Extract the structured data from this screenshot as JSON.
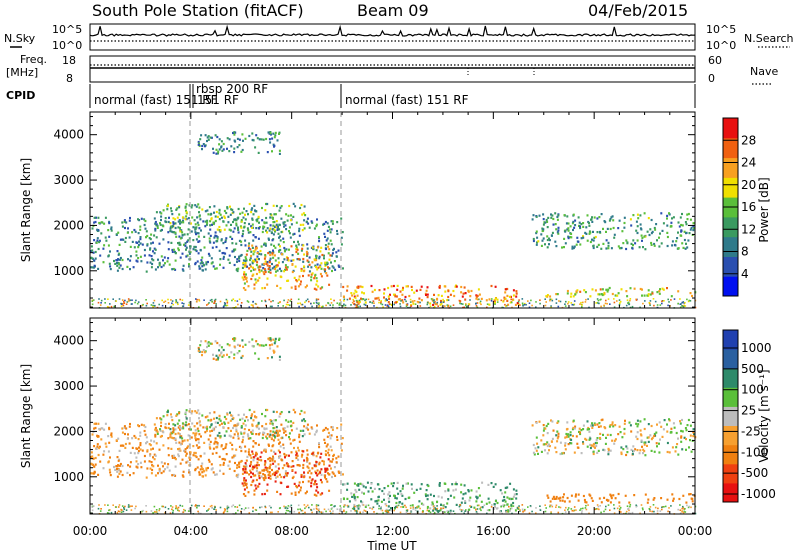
{
  "header": {
    "station": "South Pole Station (fitACF)",
    "beam": "Beam 09",
    "date": "04/Feb/2015"
  },
  "top_panels": {
    "nsky": {
      "label": "N.Sky",
      "ticks": [
        "10^5",
        "10^0"
      ]
    },
    "nsearch": {
      "label": "N.Search",
      "ticks": [
        "10^5",
        "10^0"
      ]
    },
    "freq": {
      "label_line1": "Freq.",
      "label_line2": "[MHz]",
      "ticks": [
        "18",
        "8"
      ]
    },
    "nave": {
      "label": "Nave",
      "ticks": [
        "60",
        "0"
      ]
    },
    "cpid": {
      "label": "CPID",
      "segments": [
        {
          "label": "normal (fast) 151 RF",
          "start_hour": 0,
          "end_hour": 4.0
        },
        {
          "label": "rbsp 200 RF",
          "start_hour": 4.0,
          "end_hour": 4.15
        },
        {
          "label": "151 RF",
          "start_hour": 4.15,
          "end_hour": 10.0
        },
        {
          "label": "normal (fast) 151 RF",
          "start_hour": 10.0,
          "end_hour": 24.0
        }
      ]
    }
  },
  "chart_data": [
    {
      "type": "heatmap",
      "name": "power",
      "ylabel": "Slant Range [km]",
      "xlabel": "",
      "xlim": [
        0,
        24
      ],
      "ylim": [
        180,
        4500
      ],
      "yticks": [
        1000,
        2000,
        3000,
        4000
      ],
      "colorbar": {
        "label": "Power [dB]",
        "ticks": [
          4,
          8,
          12,
          16,
          20,
          24,
          28
        ]
      },
      "echo_regions": [
        {
          "t0": 0.0,
          "t1": 10.0,
          "r0": 1000,
          "r1": 2200,
          "value": 10
        },
        {
          "t0": 2.5,
          "t1": 8.5,
          "r0": 1850,
          "r1": 2500,
          "value": 14
        },
        {
          "t0": 4.2,
          "t1": 7.5,
          "r0": 3600,
          "r1": 4100,
          "value": 10
        },
        {
          "t0": 6.0,
          "t1": 9.5,
          "r0": 600,
          "r1": 1600,
          "value": 22
        },
        {
          "t0": 10.0,
          "t1": 17.0,
          "r0": 250,
          "r1": 700,
          "value": 24
        },
        {
          "t0": 17.5,
          "t1": 24.0,
          "r0": 1500,
          "r1": 2300,
          "value": 12
        },
        {
          "t0": 18.0,
          "t1": 24.0,
          "r0": 450,
          "r1": 650,
          "value": 20
        }
      ]
    },
    {
      "type": "heatmap",
      "name": "velocity",
      "ylabel": "Slant Range [km]",
      "xlabel": "Time UT",
      "xlim": [
        0,
        24
      ],
      "ylim": [
        180,
        4500
      ],
      "yticks": [
        1000,
        2000,
        3000,
        4000
      ],
      "xticks": [
        "00:00",
        "04:00",
        "08:00",
        "12:00",
        "16:00",
        "20:00",
        "00:00"
      ],
      "colorbar": {
        "label": "Velocity [m s⁻¹]",
        "ticks": [
          1000,
          500,
          100,
          25,
          -25,
          -100,
          -500,
          -1000
        ]
      },
      "echo_regions": [
        {
          "t0": 0.0,
          "t1": 10.0,
          "r0": 1000,
          "r1": 2200,
          "value": -100
        },
        {
          "t0": 2.5,
          "t1": 8.5,
          "r0": 1850,
          "r1": 2500,
          "value": 0
        },
        {
          "t0": 4.2,
          "t1": 7.5,
          "r0": 3600,
          "r1": 4100,
          "value": 0
        },
        {
          "t0": 6.0,
          "t1": 9.5,
          "r0": 600,
          "r1": 1600,
          "value": -500
        },
        {
          "t0": 10.0,
          "t1": 17.0,
          "r0": 250,
          "r1": 900,
          "value": 100
        },
        {
          "t0": 17.5,
          "t1": 24.0,
          "r0": 1500,
          "r1": 2300,
          "value": 0
        },
        {
          "t0": 18.0,
          "t1": 24.0,
          "r0": 450,
          "r1": 650,
          "value": -300
        }
      ]
    }
  ]
}
